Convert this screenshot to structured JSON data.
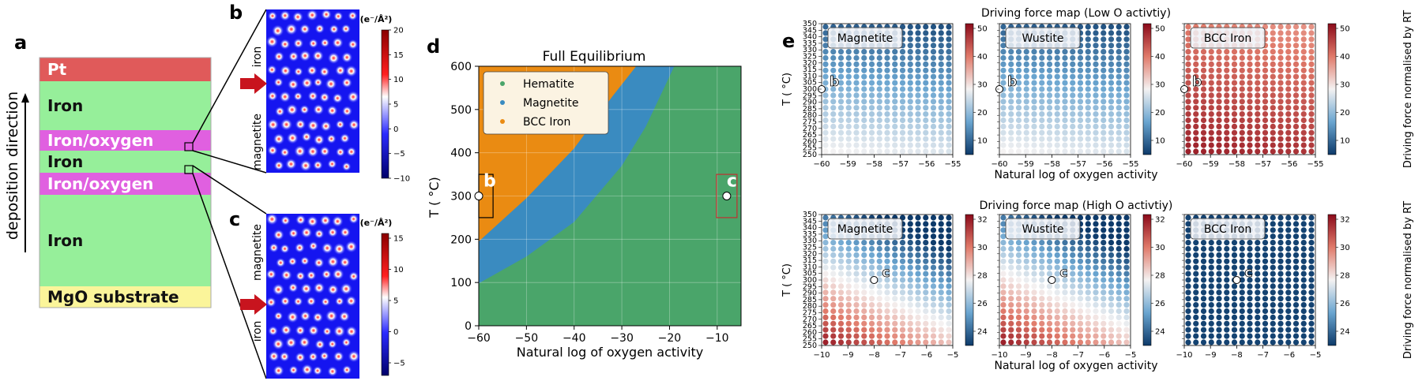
{
  "panel_letters": {
    "a": "a",
    "b": "b",
    "c": "c",
    "d": "d",
    "e": "e"
  },
  "panel_a": {
    "axis_label": "deposition direction",
    "layers": [
      {
        "label": "Pt",
        "color": "#e05a5a"
      },
      {
        "label": "Iron",
        "color": "#96ef9a"
      },
      {
        "label": "Iron/oxygen",
        "color": "#e060e0"
      },
      {
        "label": "Iron",
        "color": "#96ef9a"
      },
      {
        "label": "Iron/oxygen",
        "color": "#e060e0"
      },
      {
        "label": "Iron",
        "color": "#96ef9a"
      },
      {
        "label": "MgO substrate",
        "color": "#fbf59a"
      }
    ]
  },
  "panel_b": {
    "unit": "(e⁻/Å²)",
    "ticks": [
      "20",
      "15",
      "10",
      "5",
      "0",
      "−5",
      "−10"
    ],
    "labels": [
      "iron",
      "magnetite"
    ]
  },
  "panel_c": {
    "unit": "(e⁻/Å²)",
    "ticks": [
      "15",
      "10",
      "5",
      "0",
      "−5"
    ],
    "labels": [
      "magnetite",
      "iron"
    ]
  },
  "panel_d": {
    "chart_data": {
      "type": "area",
      "title": "Full Equilibrium",
      "xlabel": "Natural log of oxygen activity",
      "ylabel": "T ( °C)",
      "xlim": [
        -60,
        -5
      ],
      "ylim": [
        0,
        600
      ],
      "xticks": [
        "−60",
        "−50",
        "−40",
        "−30",
        "−20",
        "−10"
      ],
      "yticks": [
        "0",
        "100",
        "200",
        "300",
        "400",
        "500",
        "600"
      ],
      "legend": [
        "Hematite",
        "Magnetite",
        "BCC Iron"
      ],
      "colors": {
        "Hematite": "#4aa56a",
        "Magnetite": "#3a8bc0",
        "BCC Iron": "#ea8b12"
      },
      "boundary_bcc_magnetite": {
        "x": [
          -60,
          -50,
          -40,
          -32,
          -27
        ],
        "y": [
          195,
          295,
          410,
          530,
          600
        ]
      },
      "boundary_magnetite_hematite": {
        "x": [
          -60,
          -50,
          -40,
          -30,
          -25,
          -19
        ],
        "y": [
          98,
          160,
          240,
          370,
          460,
          600
        ]
      },
      "markers": [
        {
          "label": "b",
          "x": -60,
          "y": 300
        },
        {
          "label": "c",
          "x": -8,
          "y": 300
        }
      ]
    }
  },
  "panel_e": {
    "title_low": "Driving force map (Low O activtiy)",
    "title_high": "Driving force map (High O activtiy)",
    "xlabel": "Natural log of oxygen activity",
    "ylabel": "T ( °C)",
    "colorbar_label": "Driving force normalised by RT",
    "low": {
      "xticks": [
        "−60",
        "−59",
        "−58",
        "−57",
        "−56",
        "−55"
      ],
      "yticks": [
        "350",
        "345",
        "340",
        "335",
        "330",
        "325",
        "320",
        "315",
        "310",
        "305",
        "300",
        "295",
        "290",
        "285",
        "280",
        "275",
        "270",
        "265",
        "260",
        "255",
        "250"
      ],
      "cbar_ticks": [
        "50",
        "40",
        "30",
        "20",
        "10"
      ],
      "marker": "b",
      "maps": [
        {
          "label": "Magnetite"
        },
        {
          "label": "Wustite"
        },
        {
          "label": "BCC Iron"
        }
      ]
    },
    "high": {
      "xticks": [
        "−10",
        "−9",
        "−8",
        "−7",
        "−6",
        "−5"
      ],
      "yticks": [
        "350",
        "345",
        "340",
        "335",
        "330",
        "325",
        "320",
        "315",
        "310",
        "305",
        "300",
        "295",
        "290",
        "285",
        "280",
        "275",
        "270",
        "265",
        "260",
        "255",
        "250"
      ],
      "cbar_ticks": [
        "32",
        "30",
        "28",
        "26",
        "24"
      ],
      "marker": "c",
      "maps": [
        {
          "label": "Magnetite"
        },
        {
          "label": "Wustite"
        },
        {
          "label": "BCC Iron"
        }
      ]
    }
  }
}
